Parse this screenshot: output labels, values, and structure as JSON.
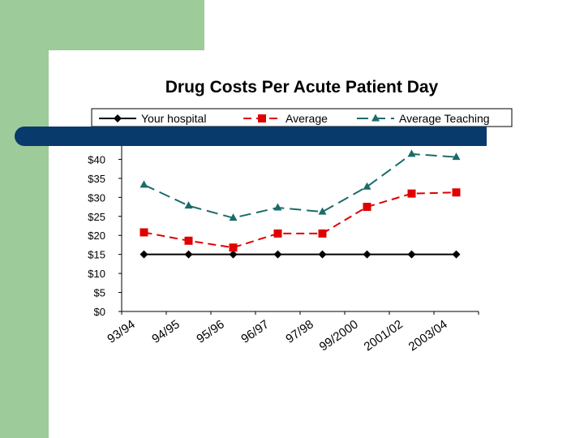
{
  "chart_data": {
    "type": "line",
    "title": "Drug Costs Per Acute Patient Day",
    "xlabel": "",
    "ylabel": "",
    "categories": [
      "93/94",
      "94/95",
      "95/96",
      "96/97",
      "97/98",
      "99/2000",
      "2001/02",
      "2003/04"
    ],
    "ylim": [
      0,
      45
    ],
    "ytick_labels": [
      "$0",
      "$5",
      "$10",
      "$15",
      "$20",
      "$25",
      "$30",
      "$35",
      "$40"
    ],
    "grid": false,
    "legend_position": "top",
    "series": [
      {
        "name": "Your hospital",
        "values": [
          15,
          15,
          15,
          15,
          15,
          15,
          15,
          15
        ],
        "color": "#000000",
        "marker": "diamond",
        "dash": "solid"
      },
      {
        "name": "Average",
        "values": [
          20.8,
          18.6,
          16.8,
          20.5,
          20.5,
          27.5,
          31.0,
          31.3
        ],
        "color": "#e00000",
        "marker": "square",
        "dash": "dashed"
      },
      {
        "name": "Average Teaching",
        "values": [
          33.3,
          27.8,
          24.6,
          27.3,
          26.2,
          32.8,
          41.4,
          40.6
        ],
        "color": "#1b6b6b",
        "marker": "triangle",
        "dash": "longdash"
      }
    ]
  }
}
